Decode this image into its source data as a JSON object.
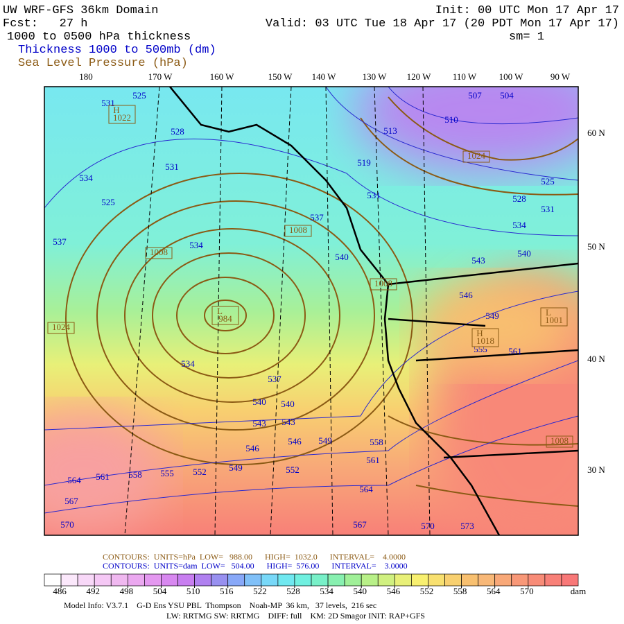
{
  "header": {
    "title": "UW WRF-GFS 36km Domain",
    "forecast": "Fcst:   27 h",
    "field": "1000 to 0500 hPa thickness",
    "thickness_legend": "Thickness 1000 to 500mb (dm)",
    "pressure_legend": "Sea Level Pressure (hPa)",
    "init": "Init: 00 UTC Mon 17 Apr 17",
    "valid": "Valid: 03 UTC Tue 18 Apr 17 (20 PDT Mon 17 Apr 17)",
    "smoothing": "sm= 1"
  },
  "map": {
    "longitudes": [
      "180",
      "170 W",
      "160 W",
      "150 W",
      "140 W",
      "130 W",
      "120 W",
      "110 W",
      "100 W",
      "90 W"
    ],
    "latitudes": [
      "60 N",
      "50 N",
      "40 N",
      "30 N"
    ],
    "thickness_labels": [
      "525",
      "531",
      "528",
      "531",
      "534",
      "525",
      "537",
      "534",
      "534",
      "537",
      "540",
      "540",
      "543",
      "543",
      "546",
      "546",
      "549",
      "549",
      "552",
      "552",
      "555",
      "558",
      "561",
      "564",
      "567",
      "570",
      "567",
      "564",
      "561",
      "558",
      "570",
      "573",
      "537",
      "540",
      "531",
      "519",
      "513",
      "510",
      "507",
      "504",
      "525",
      "528",
      "531",
      "534",
      "540",
      "543",
      "546",
      "549",
      "555",
      "561"
    ],
    "pressure_labels": [
      {
        "mark": "H",
        "value": "1022"
      },
      {
        "mark": "",
        "value": "1024"
      },
      {
        "mark": "",
        "value": "1008"
      },
      {
        "mark": "",
        "value": "1008"
      },
      {
        "mark": "",
        "value": "1008"
      },
      {
        "mark": "L",
        "value": "984"
      },
      {
        "mark": "",
        "value": "1024"
      },
      {
        "mark": "L",
        "value": "1001"
      },
      {
        "mark": "H",
        "value": "1018"
      },
      {
        "mark": "",
        "value": "1008"
      }
    ]
  },
  "contours": {
    "pressure": "CONTOURS:  UNITS=hPa  LOW=   988.00      HIGH=  1032.0      INTERVAL=    4.0000",
    "thickness": "CONTOURS:  UNITS=dam  LOW=   504.00      HIGH=  576.00      INTERVAL=    3.0000"
  },
  "colorbar": {
    "lim": [
      483,
      579
    ],
    "ticks": [
      486,
      492,
      498,
      504,
      510,
      516,
      522,
      528,
      534,
      540,
      546,
      552,
      558,
      564,
      570
    ],
    "units": "dam",
    "colors": [
      "#ffffff",
      "#fbe8fb",
      "#f8d8f8",
      "#f5c8f5",
      "#f0b8f0",
      "#eba8f0",
      "#e498f0",
      "#d888f0",
      "#c87ef0",
      "#b080f0",
      "#9890f0",
      "#88a8f8",
      "#80c0f8",
      "#78d8f8",
      "#70e8f0",
      "#70f0e0",
      "#78f0c8",
      "#88f0b0",
      "#a0f098",
      "#b8f088",
      "#d0f080",
      "#e8f078",
      "#f8f070",
      "#f8e070",
      "#f8d070",
      "#f8c070",
      "#f8b878",
      "#f8a878",
      "#f89878",
      "#f88c78",
      "#f88078",
      "#f87878"
    ]
  },
  "footer": {
    "model": "Model Info: V3.7.1    G-D Ens YSU PBL  Thompson    Noah-MP  36 km,   37 levels,  216 sec",
    "physics": "LW: RRTMG SW: RRTMG    DIFF: full    KM: 2D Smagor INIT: RAP+GFS"
  }
}
